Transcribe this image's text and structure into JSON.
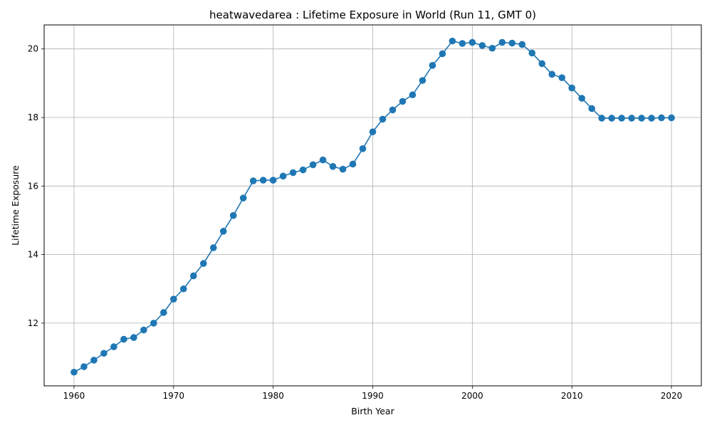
{
  "chart_data": {
    "type": "line",
    "title": "heatwavedarea : Lifetime Exposure in World (Run 11, GMT 0)",
    "xlabel": "Birth Year",
    "ylabel": "Lifetime Exposure",
    "xlim": [
      1957,
      2023
    ],
    "ylim": [
      10.17,
      20.7
    ],
    "xticks": [
      1960,
      1970,
      1980,
      1990,
      2000,
      2010,
      2020
    ],
    "yticks": [
      12,
      14,
      16,
      18,
      20
    ],
    "grid": true,
    "colors": {
      "line": "#1f77b4",
      "grid": "#b0b0b0"
    },
    "x": [
      1960,
      1961,
      1962,
      1963,
      1964,
      1965,
      1966,
      1967,
      1968,
      1969,
      1970,
      1971,
      1972,
      1973,
      1974,
      1975,
      1976,
      1977,
      1978,
      1979,
      1980,
      1981,
      1982,
      1983,
      1984,
      1985,
      1986,
      1987,
      1988,
      1989,
      1990,
      1991,
      1992,
      1993,
      1994,
      1995,
      1996,
      1997,
      1998,
      1999,
      2000,
      2001,
      2002,
      2003,
      2004,
      2005,
      2006,
      2007,
      2008,
      2009,
      2010,
      2011,
      2012,
      2013,
      2014,
      2015,
      2016,
      2017,
      2018,
      2019,
      2020
    ],
    "series": [
      {
        "values": [
          10.57,
          10.73,
          10.92,
          11.12,
          11.31,
          11.53,
          11.58,
          11.8,
          12.0,
          12.31,
          12.7,
          13.0,
          13.38,
          13.74,
          14.2,
          14.68,
          15.14,
          15.65,
          16.15,
          16.17,
          16.17,
          16.29,
          16.39,
          16.47,
          16.62,
          16.76,
          16.57,
          16.49,
          16.64,
          17.09,
          17.58,
          17.95,
          18.22,
          18.47,
          18.66,
          19.08,
          19.52,
          19.86,
          20.23,
          20.16,
          20.19,
          20.1,
          20.02,
          20.19,
          20.17,
          20.13,
          19.88,
          19.57,
          19.26,
          19.16,
          18.86,
          18.56,
          18.26,
          17.98,
          17.98,
          17.98,
          17.98,
          17.98,
          17.98,
          17.99,
          17.99
        ]
      }
    ]
  }
}
